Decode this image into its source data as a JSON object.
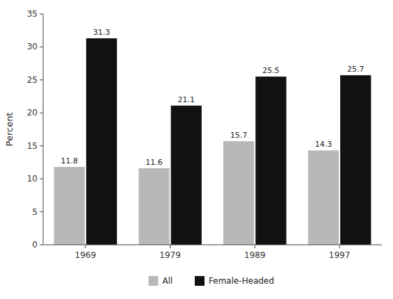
{
  "chart_data": {
    "type": "bar",
    "categories": [
      "1969",
      "1979",
      "1989",
      "1997"
    ],
    "series": [
      {
        "name": "All",
        "color": "#b8b8b8",
        "values": [
          11.8,
          11.6,
          15.7,
          14.3
        ]
      },
      {
        "name": "Female-Headed",
        "color": "#111111",
        "values": [
          31.3,
          21.1,
          25.5,
          25.7
        ]
      }
    ],
    "y_label": "Percent",
    "ylim": [
      0,
      35
    ],
    "yticks": [
      0,
      5,
      10,
      15,
      20,
      25,
      30,
      35
    ],
    "grid": false,
    "legend": "bottom",
    "data_labels": true
  }
}
